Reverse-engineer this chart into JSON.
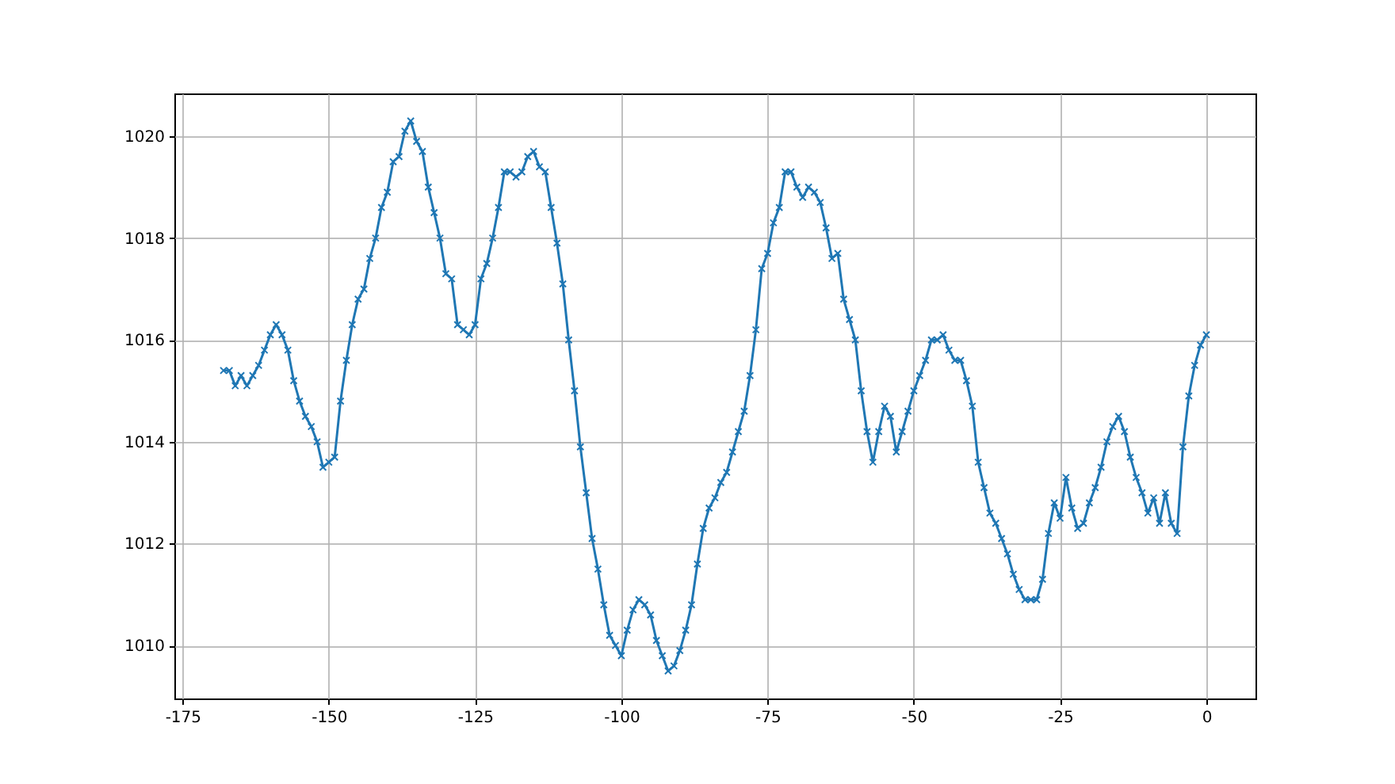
{
  "chart_data": {
    "type": "line",
    "marker": "cross",
    "grid": true,
    "xlim": [
      -176.4,
      8.4
    ],
    "ylim": [
      1008.96,
      1020.84
    ],
    "xticks": [
      -175,
      -150,
      -125,
      -100,
      -75,
      -50,
      -25,
      0
    ],
    "yticks": [
      1010,
      1012,
      1014,
      1016,
      1018,
      1020
    ],
    "x": [
      -168,
      -167,
      -166,
      -165,
      -164,
      -163,
      -162,
      -161,
      -160,
      -159,
      -158,
      -157,
      -156,
      -155,
      -154,
      -153,
      -152,
      -151,
      -150,
      -149,
      -148,
      -147,
      -146,
      -145,
      -144,
      -143,
      -142,
      -141,
      -140,
      -139,
      -138,
      -137,
      -136,
      -135,
      -134,
      -133,
      -132,
      -131,
      -130,
      -129,
      -128,
      -127,
      -126,
      -125,
      -124,
      -123,
      -122,
      -121,
      -120,
      -119,
      -118,
      -117,
      -116,
      -115,
      -114,
      -113,
      -112,
      -111,
      -110,
      -109,
      -108,
      -107,
      -106,
      -105,
      -104,
      -103,
      -102,
      -101,
      -100,
      -99,
      -98,
      -97,
      -96,
      -95,
      -94,
      -93,
      -92,
      -91,
      -90,
      -89,
      -88,
      -87,
      -86,
      -85,
      -84,
      -83,
      -82,
      -81,
      -80,
      -79,
      -78,
      -77,
      -76,
      -75,
      -74,
      -73,
      -72,
      -71,
      -70,
      -69,
      -68,
      -67,
      -66,
      -65,
      -64,
      -63,
      -62,
      -61,
      -60,
      -59,
      -58,
      -57,
      -56,
      -55,
      -54,
      -53,
      -52,
      -51,
      -50,
      -49,
      -48,
      -47,
      -46,
      -45,
      -44,
      -43,
      -42,
      -41,
      -40,
      -39,
      -38,
      -37,
      -36,
      -35,
      -34,
      -33,
      -32,
      -31,
      -30,
      -29,
      -28,
      -27,
      -26,
      -25,
      -24,
      -23,
      -22,
      -21,
      -20,
      -19,
      -18,
      -17,
      -16,
      -15,
      -14,
      -13,
      -12,
      -11,
      -10,
      -9,
      -8,
      -7,
      -6,
      -5,
      -4,
      -3,
      -2,
      -1,
      0
    ],
    "series": [
      {
        "color": "#1f77b4",
        "values": [
          1015.4,
          1015.4,
          1015.1,
          1015.3,
          1015.1,
          1015.3,
          1015.5,
          1015.8,
          1016.1,
          1016.3,
          1016.1,
          1015.8,
          1015.2,
          1014.8,
          1014.5,
          1014.3,
          1014.0,
          1013.5,
          1013.6,
          1013.7,
          1014.8,
          1015.6,
          1016.3,
          1016.8,
          1017.0,
          1017.6,
          1018.0,
          1018.6,
          1018.9,
          1019.5,
          1019.6,
          1020.1,
          1020.3,
          1019.9,
          1019.7,
          1019.0,
          1018.5,
          1018.0,
          1017.3,
          1017.2,
          1016.3,
          1016.2,
          1016.1,
          1016.3,
          1017.2,
          1017.5,
          1018.0,
          1018.6,
          1019.3,
          1019.3,
          1019.2,
          1019.3,
          1019.6,
          1019.7,
          1019.4,
          1019.3,
          1018.6,
          1017.9,
          1017.1,
          1016.0,
          1015.0,
          1013.9,
          1013.0,
          1012.1,
          1011.5,
          1010.8,
          1010.2,
          1010.0,
          1009.8,
          1010.3,
          1010.7,
          1010.9,
          1010.8,
          1010.6,
          1010.1,
          1009.8,
          1009.5,
          1009.6,
          1009.9,
          1010.3,
          1010.8,
          1011.6,
          1012.3,
          1012.7,
          1012.9,
          1013.2,
          1013.4,
          1013.8,
          1014.2,
          1014.6,
          1015.3,
          1016.2,
          1017.4,
          1017.7,
          1018.3,
          1018.6,
          1019.3,
          1019.3,
          1019.0,
          1018.8,
          1019.0,
          1018.9,
          1018.7,
          1018.2,
          1017.6,
          1017.7,
          1016.8,
          1016.4,
          1016.0,
          1015.0,
          1014.2,
          1013.6,
          1014.2,
          1014.7,
          1014.5,
          1013.8,
          1014.2,
          1014.6,
          1015.0,
          1015.3,
          1015.6,
          1016.0,
          1016.0,
          1016.1,
          1015.8,
          1015.6,
          1015.6,
          1015.2,
          1014.7,
          1013.6,
          1013.1,
          1012.6,
          1012.4,
          1012.1,
          1011.8,
          1011.4,
          1011.1,
          1010.9,
          1010.9,
          1010.9,
          1011.3,
          1012.2,
          1012.8,
          1012.5,
          1013.3,
          1012.7,
          1012.3,
          1012.4,
          1012.8,
          1013.1,
          1013.5,
          1014.0,
          1014.3,
          1014.5,
          1014.2,
          1013.7,
          1013.3,
          1013.0,
          1012.6,
          1012.9,
          1012.4,
          1013.0,
          1012.4,
          1012.2,
          1013.9,
          1014.9,
          1015.5,
          1015.9,
          1016.1
        ]
      }
    ]
  }
}
